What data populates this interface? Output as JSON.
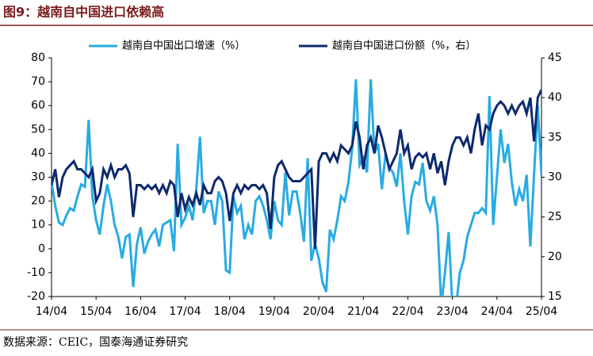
{
  "chart_data": {
    "type": "line",
    "title": "图9：越南自中国进口依赖高",
    "source": "数据来源：CEIC，国泰海通证券研究",
    "categories": [
      "14/04",
      null,
      null,
      null,
      null,
      null,
      null,
      null,
      null,
      null,
      null,
      null,
      "15/04",
      null,
      null,
      null,
      null,
      null,
      null,
      null,
      null,
      null,
      null,
      null,
      "16/04",
      null,
      null,
      null,
      null,
      null,
      null,
      null,
      null,
      null,
      null,
      null,
      "17/04",
      null,
      null,
      null,
      null,
      null,
      null,
      null,
      null,
      null,
      null,
      null,
      "18/04",
      null,
      null,
      null,
      null,
      null,
      null,
      null,
      null,
      null,
      null,
      null,
      "19/04",
      null,
      null,
      null,
      null,
      null,
      null,
      null,
      null,
      null,
      null,
      null,
      "20/04",
      null,
      null,
      null,
      null,
      null,
      null,
      null,
      null,
      null,
      null,
      null,
      "21/04",
      null,
      null,
      null,
      null,
      null,
      null,
      null,
      null,
      null,
      null,
      null,
      "22/04",
      null,
      null,
      null,
      null,
      null,
      null,
      null,
      null,
      null,
      null,
      null,
      "23/04",
      null,
      null,
      null,
      null,
      null,
      null,
      null,
      null,
      null,
      null,
      null,
      "24/04",
      null,
      null,
      null,
      null,
      null,
      null,
      null,
      null,
      null,
      null,
      null,
      "25/04"
    ],
    "series": [
      {
        "name": "越南自中国出口增速（%）",
        "color": "#29abe2",
        "values": [
          28,
          18,
          11,
          10,
          14,
          17,
          16,
          22,
          27,
          26,
          54,
          22,
          12,
          6,
          18,
          27,
          20,
          10,
          5,
          -4,
          5,
          6,
          -16,
          2,
          9,
          -2,
          3,
          6,
          8,
          1,
          10,
          11,
          12,
          -1,
          44,
          10,
          13,
          18,
          12,
          25,
          47,
          15,
          20,
          20,
          10,
          24,
          20,
          -9,
          -10,
          22,
          15,
          18,
          4,
          10,
          6,
          20,
          22,
          18,
          12,
          4,
          20,
          12,
          10,
          32,
          14,
          24,
          24,
          15,
          3,
          38,
          -5,
          2,
          -4,
          -14,
          -18,
          8,
          4,
          12,
          22,
          20,
          28,
          42,
          71,
          35,
          38,
          32,
          71,
          40,
          44,
          25,
          40,
          34,
          32,
          26,
          40,
          20,
          6,
          22,
          28,
          27,
          36,
          20,
          16,
          22,
          10,
          -24,
          -10,
          7,
          -24,
          -24,
          -10,
          -5,
          5,
          10,
          15,
          15,
          17,
          15,
          64,
          10,
          30,
          50,
          36,
          44,
          28,
          18,
          25,
          20,
          31,
          1,
          31,
          60,
          31
        ]
      },
      {
        "name": "越南自中国进口份额（%，右）",
        "color": "#0d2a6e",
        "axis": "y2",
        "values": [
          29,
          31,
          27.5,
          30,
          31,
          31.5,
          32,
          31,
          31,
          30.5,
          30,
          31,
          27,
          28,
          31,
          30,
          31.5,
          30,
          31,
          31,
          31.5,
          30.5,
          25,
          29,
          29,
          28.5,
          29,
          28.5,
          29,
          28,
          29,
          28,
          29.5,
          29,
          25,
          28,
          26,
          27.5,
          26.5,
          28,
          26.5,
          29,
          28,
          28,
          29.5,
          30,
          29.5,
          28,
          24.5,
          28,
          29,
          28,
          29,
          28.5,
          29,
          29,
          28.5,
          29,
          28,
          23.5,
          30,
          31.5,
          32,
          31,
          30,
          29.5,
          29.5,
          29.5,
          30,
          30.5,
          31,
          21,
          32,
          33,
          33,
          32,
          33,
          32,
          34,
          33.5,
          33,
          34,
          37,
          35,
          31,
          34,
          35,
          33,
          36.5,
          35,
          33,
          31,
          32,
          33,
          36,
          33,
          34,
          31,
          32.5,
          33,
          32.5,
          33,
          31,
          33,
          30.5,
          32,
          29,
          32,
          34,
          35,
          35,
          34,
          35,
          33,
          36,
          38,
          34,
          36.5,
          36,
          38,
          39,
          39.5,
          39,
          38,
          39,
          38,
          39,
          39.5,
          38,
          40,
          34.5,
          40,
          41
        ]
      }
    ],
    "ylim": [
      -20,
      80
    ],
    "yticks": [
      -20,
      -10,
      0,
      10,
      20,
      30,
      40,
      50,
      60,
      70,
      80
    ],
    "y2lim": [
      15,
      45
    ],
    "y2ticks": [
      15,
      20,
      25,
      30,
      35,
      40,
      45
    ]
  }
}
